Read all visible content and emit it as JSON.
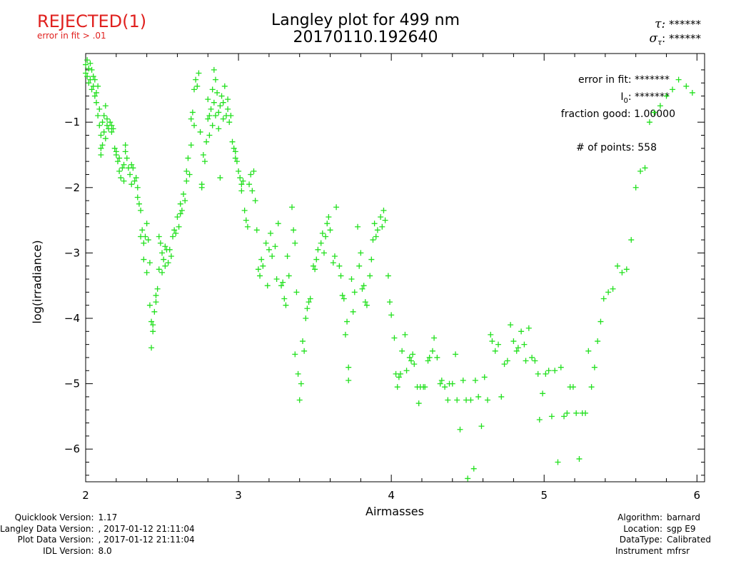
{
  "status": {
    "label": "REJECTED(1)",
    "reason": "error in fit > .01",
    "color": "#e0201e"
  },
  "header": {
    "title_line1": "Langley plot for 499 nm",
    "title_line2": "20170110.192640",
    "tau_label": "τ:",
    "tau_value": "******",
    "sigma_label": "σ",
    "sigma_sub": "τ",
    "sigma_colon": ":",
    "sigma_value": "******"
  },
  "stats": {
    "error_label": "error in fit:",
    "error_value": "*******",
    "i0_label": "I",
    "i0_sub": "0",
    "i0_colon": ":",
    "i0_value": "*******",
    "fraction_label": "fraction good:",
    "fraction_value": "1.00000",
    "points_label": "# of points:",
    "points_value": "558"
  },
  "footer_left": [
    {
      "label": "Quicklook Version:",
      "value": "1.17"
    },
    {
      "label": "Langley Data Version:",
      "value": ", 2017-01-12 21:11:04"
    },
    {
      "label": "Plot Data Version:",
      "value": ", 2017-01-12 21:11:04"
    },
    {
      "label": "IDL Version:",
      "value": "8.0"
    }
  ],
  "footer_right": [
    {
      "label": "Algorithm:",
      "value": "barnard"
    },
    {
      "label": "Location:",
      "value": "sgp E9"
    },
    {
      "label": "DataType:",
      "value": "Calibrated"
    },
    {
      "label": "Instrument",
      "value": "mfrsr"
    }
  ],
  "chart_data": {
    "type": "scatter",
    "xlabel": "Airmasses",
    "ylabel": "log(irradiance)",
    "xlim": [
      2.0,
      6.05
    ],
    "ylim": [
      -6.5,
      0.05
    ],
    "x_ticks": [
      2,
      3,
      4,
      5,
      6
    ],
    "y_ticks": [
      -1,
      -2,
      -3,
      -4,
      -5,
      -6
    ],
    "marker": "+",
    "marker_color": "#22e01e",
    "grid": false,
    "points": [
      [
        2.0,
        -0.12
      ],
      [
        2.0,
        -0.25
      ],
      [
        2.01,
        -0.05
      ],
      [
        2.01,
        -0.3
      ],
      [
        2.02,
        -0.18
      ],
      [
        2.02,
        -0.4
      ],
      [
        2.03,
        -0.1
      ],
      [
        2.03,
        -0.35
      ],
      [
        2.04,
        -0.2
      ],
      [
        2.04,
        -0.5
      ],
      [
        2.05,
        -0.3
      ],
      [
        2.05,
        -0.45
      ],
      [
        2.06,
        -0.6
      ],
      [
        2.06,
        -0.35
      ],
      [
        2.07,
        -0.55
      ],
      [
        2.07,
        -0.7
      ],
      [
        2.08,
        -0.45
      ],
      [
        2.08,
        -0.9
      ],
      [
        2.09,
        -0.8
      ],
      [
        2.09,
        -1.05
      ],
      [
        2.1,
        -1.2
      ],
      [
        2.1,
        -1.4
      ],
      [
        2.1,
        -1.5
      ],
      [
        2.11,
        -1.0
      ],
      [
        2.11,
        -1.35
      ],
      [
        2.12,
        -1.15
      ],
      [
        2.12,
        -0.9
      ],
      [
        2.13,
        -0.75
      ],
      [
        2.13,
        -1.25
      ],
      [
        2.14,
        -1.05
      ],
      [
        2.14,
        -0.95
      ],
      [
        2.15,
        -1.1
      ],
      [
        2.16,
        -1.0
      ],
      [
        2.17,
        -1.15
      ],
      [
        2.17,
        -1.05
      ],
      [
        2.18,
        -1.1
      ],
      [
        2.19,
        -1.4
      ],
      [
        2.2,
        -1.5
      ],
      [
        2.2,
        -1.45
      ],
      [
        2.21,
        -1.6
      ],
      [
        2.22,
        -1.75
      ],
      [
        2.22,
        -1.55
      ],
      [
        2.23,
        -1.85
      ],
      [
        2.24,
        -1.7
      ],
      [
        2.25,
        -1.9
      ],
      [
        2.25,
        -1.65
      ],
      [
        2.26,
        -1.45
      ],
      [
        2.26,
        -1.35
      ],
      [
        2.27,
        -1.55
      ],
      [
        2.28,
        -1.7
      ],
      [
        2.29,
        -1.8
      ],
      [
        2.3,
        -1.65
      ],
      [
        2.3,
        -1.95
      ],
      [
        2.31,
        -1.7
      ],
      [
        2.32,
        -1.9
      ],
      [
        2.33,
        -1.85
      ],
      [
        2.34,
        -2.0
      ],
      [
        2.34,
        -2.15
      ],
      [
        2.35,
        -2.25
      ],
      [
        2.36,
        -2.35
      ],
      [
        2.36,
        -2.75
      ],
      [
        2.37,
        -2.65
      ],
      [
        2.38,
        -2.85
      ],
      [
        2.38,
        -3.1
      ],
      [
        2.39,
        -2.75
      ],
      [
        2.4,
        -2.55
      ],
      [
        2.4,
        -3.3
      ],
      [
        2.41,
        -2.8
      ],
      [
        2.42,
        -3.15
      ],
      [
        2.42,
        -3.8
      ],
      [
        2.43,
        -4.05
      ],
      [
        2.43,
        -4.45
      ],
      [
        2.44,
        -4.2
      ],
      [
        2.44,
        -4.1
      ],
      [
        2.45,
        -3.9
      ],
      [
        2.46,
        -3.75
      ],
      [
        2.46,
        -3.65
      ],
      [
        2.47,
        -3.55
      ],
      [
        2.48,
        -3.25
      ],
      [
        2.48,
        -2.75
      ],
      [
        2.49,
        -2.85
      ],
      [
        2.5,
        -3.0
      ],
      [
        2.5,
        -3.3
      ],
      [
        2.51,
        -3.1
      ],
      [
        2.52,
        -2.9
      ],
      [
        2.52,
        -3.2
      ],
      [
        2.53,
        -2.95
      ],
      [
        2.54,
        -3.15
      ],
      [
        2.55,
        -2.95
      ],
      [
        2.56,
        -3.05
      ],
      [
        2.57,
        -2.75
      ],
      [
        2.58,
        -2.65
      ],
      [
        2.59,
        -2.7
      ],
      [
        2.6,
        -2.45
      ],
      [
        2.61,
        -2.6
      ],
      [
        2.62,
        -2.25
      ],
      [
        2.62,
        -2.4
      ],
      [
        2.63,
        -2.35
      ],
      [
        2.64,
        -2.1
      ],
      [
        2.65,
        -2.2
      ],
      [
        2.66,
        -1.75
      ],
      [
        2.66,
        -1.9
      ],
      [
        2.67,
        -1.55
      ],
      [
        2.68,
        -1.8
      ],
      [
        2.69,
        -1.35
      ],
      [
        2.69,
        -0.95
      ],
      [
        2.7,
        -0.85
      ],
      [
        2.71,
        -1.05
      ],
      [
        2.71,
        -0.5
      ],
      [
        2.72,
        -0.35
      ],
      [
        2.73,
        -0.45
      ],
      [
        2.74,
        -0.25
      ],
      [
        2.75,
        -1.15
      ],
      [
        2.76,
        -1.95
      ],
      [
        2.76,
        -2.0
      ],
      [
        2.77,
        -1.5
      ],
      [
        2.78,
        -1.6
      ],
      [
        2.79,
        -1.3
      ],
      [
        2.8,
        -0.95
      ],
      [
        2.8,
        -0.65
      ],
      [
        2.81,
        -0.9
      ],
      [
        2.81,
        -1.2
      ],
      [
        2.82,
        -0.8
      ],
      [
        2.83,
        -0.5
      ],
      [
        2.83,
        -1.05
      ],
      [
        2.84,
        -0.7
      ],
      [
        2.84,
        -0.2
      ],
      [
        2.85,
        -0.35
      ],
      [
        2.85,
        -0.9
      ],
      [
        2.86,
        -0.55
      ],
      [
        2.87,
        -1.1
      ],
      [
        2.87,
        -0.85
      ],
      [
        2.88,
        -0.75
      ],
      [
        2.88,
        -1.85
      ],
      [
        2.89,
        -0.6
      ],
      [
        2.9,
        -0.95
      ],
      [
        2.9,
        -0.7
      ],
      [
        2.91,
        -0.45
      ],
      [
        2.92,
        -0.9
      ],
      [
        2.93,
        -0.65
      ],
      [
        2.93,
        -0.8
      ],
      [
        2.94,
        -1.0
      ],
      [
        2.95,
        -0.9
      ],
      [
        2.96,
        -1.3
      ],
      [
        2.97,
        -1.4
      ],
      [
        2.98,
        -1.55
      ],
      [
        2.98,
        -1.45
      ],
      [
        2.99,
        -1.6
      ],
      [
        3.0,
        -1.75
      ],
      [
        3.01,
        -1.85
      ],
      [
        3.02,
        -1.95
      ],
      [
        3.02,
        -2.05
      ],
      [
        3.03,
        -1.9
      ],
      [
        3.04,
        -2.35
      ],
      [
        3.05,
        -2.5
      ],
      [
        3.06,
        -2.6
      ],
      [
        3.07,
        -1.95
      ],
      [
        3.08,
        -1.8
      ],
      [
        3.09,
        -2.05
      ],
      [
        3.1,
        -1.75
      ],
      [
        3.11,
        -2.2
      ],
      [
        3.12,
        -2.65
      ],
      [
        3.13,
        -3.25
      ],
      [
        3.14,
        -3.35
      ],
      [
        3.15,
        -3.1
      ],
      [
        3.16,
        -3.2
      ],
      [
        3.18,
        -2.85
      ],
      [
        3.19,
        -3.5
      ],
      [
        3.2,
        -2.95
      ],
      [
        3.21,
        -2.7
      ],
      [
        3.22,
        -3.05
      ],
      [
        3.24,
        -2.9
      ],
      [
        3.25,
        -3.4
      ],
      [
        3.26,
        -2.55
      ],
      [
        3.28,
        -3.5
      ],
      [
        3.29,
        -3.45
      ],
      [
        3.3,
        -3.7
      ],
      [
        3.31,
        -3.8
      ],
      [
        3.32,
        -3.05
      ],
      [
        3.33,
        -3.35
      ],
      [
        3.35,
        -2.3
      ],
      [
        3.36,
        -2.65
      ],
      [
        3.37,
        -2.85
      ],
      [
        3.37,
        -4.55
      ],
      [
        3.38,
        -3.6
      ],
      [
        3.39,
        -4.85
      ],
      [
        3.4,
        -5.25
      ],
      [
        3.41,
        -5.0
      ],
      [
        3.42,
        -4.35
      ],
      [
        3.43,
        -4.5
      ],
      [
        3.44,
        -4.0
      ],
      [
        3.45,
        -3.85
      ],
      [
        3.46,
        -3.75
      ],
      [
        3.47,
        -3.7
      ],
      [
        3.49,
        -3.2
      ],
      [
        3.5,
        -3.25
      ],
      [
        3.51,
        -3.1
      ],
      [
        3.52,
        -2.95
      ],
      [
        3.54,
        -2.85
      ],
      [
        3.55,
        -2.7
      ],
      [
        3.56,
        -3.0
      ],
      [
        3.57,
        -2.75
      ],
      [
        3.58,
        -2.55
      ],
      [
        3.59,
        -2.45
      ],
      [
        3.6,
        -2.65
      ],
      [
        3.62,
        -3.15
      ],
      [
        3.63,
        -3.05
      ],
      [
        3.64,
        -2.3
      ],
      [
        3.66,
        -3.2
      ],
      [
        3.67,
        -3.35
      ],
      [
        3.68,
        -3.65
      ],
      [
        3.69,
        -3.7
      ],
      [
        3.7,
        -4.25
      ],
      [
        3.71,
        -4.05
      ],
      [
        3.72,
        -4.75
      ],
      [
        3.72,
        -4.95
      ],
      [
        3.74,
        -3.4
      ],
      [
        3.75,
        -3.9
      ],
      [
        3.76,
        -3.6
      ],
      [
        3.78,
        -2.6
      ],
      [
        3.79,
        -3.2
      ],
      [
        3.8,
        -3.0
      ],
      [
        3.81,
        -3.55
      ],
      [
        3.82,
        -3.5
      ],
      [
        3.83,
        -3.75
      ],
      [
        3.84,
        -3.8
      ],
      [
        3.86,
        -3.35
      ],
      [
        3.87,
        -3.1
      ],
      [
        3.88,
        -2.8
      ],
      [
        3.89,
        -2.55
      ],
      [
        3.9,
        -2.75
      ],
      [
        3.91,
        -2.65
      ],
      [
        3.93,
        -2.45
      ],
      [
        3.94,
        -2.6
      ],
      [
        3.95,
        -2.35
      ],
      [
        3.96,
        -2.5
      ],
      [
        3.98,
        -3.35
      ],
      [
        3.99,
        -3.75
      ],
      [
        4.0,
        -3.95
      ],
      [
        4.02,
        -4.3
      ],
      [
        4.03,
        -4.85
      ],
      [
        4.04,
        -5.05
      ],
      [
        4.05,
        -4.9
      ],
      [
        4.06,
        -4.85
      ],
      [
        4.07,
        -4.5
      ],
      [
        4.09,
        -4.25
      ],
      [
        4.1,
        -4.8
      ],
      [
        4.12,
        -4.6
      ],
      [
        4.13,
        -4.65
      ],
      [
        4.14,
        -4.55
      ],
      [
        4.15,
        -4.7
      ],
      [
        4.17,
        -5.05
      ],
      [
        4.18,
        -5.3
      ],
      [
        4.19,
        -5.05
      ],
      [
        4.21,
        -5.05
      ],
      [
        4.22,
        -5.05
      ],
      [
        4.24,
        -4.65
      ],
      [
        4.25,
        -4.6
      ],
      [
        4.27,
        -4.5
      ],
      [
        4.28,
        -4.3
      ],
      [
        4.3,
        -4.6
      ],
      [
        4.32,
        -5.0
      ],
      [
        4.33,
        -4.95
      ],
      [
        4.35,
        -5.05
      ],
      [
        4.37,
        -5.25
      ],
      [
        4.38,
        -5.0
      ],
      [
        4.4,
        -5.0
      ],
      [
        4.42,
        -4.55
      ],
      [
        4.43,
        -5.25
      ],
      [
        4.45,
        -5.7
      ],
      [
        4.47,
        -4.95
      ],
      [
        4.49,
        -5.25
      ],
      [
        4.5,
        -6.45
      ],
      [
        4.52,
        -5.25
      ],
      [
        4.54,
        -6.3
      ],
      [
        4.55,
        -4.95
      ],
      [
        4.57,
        -5.2
      ],
      [
        4.59,
        -5.65
      ],
      [
        4.61,
        -4.9
      ],
      [
        4.63,
        -5.25
      ],
      [
        4.65,
        -4.25
      ],
      [
        4.66,
        -4.35
      ],
      [
        4.68,
        -4.5
      ],
      [
        4.7,
        -4.4
      ],
      [
        4.72,
        -5.2
      ],
      [
        4.74,
        -4.7
      ],
      [
        4.76,
        -4.65
      ],
      [
        4.78,
        -4.1
      ],
      [
        4.8,
        -4.35
      ],
      [
        4.82,
        -4.5
      ],
      [
        4.83,
        -4.45
      ],
      [
        4.85,
        -4.2
      ],
      [
        4.87,
        -4.4
      ],
      [
        4.88,
        -4.65
      ],
      [
        4.9,
        -4.15
      ],
      [
        4.92,
        -4.6
      ],
      [
        4.94,
        -4.65
      ],
      [
        4.96,
        -4.85
      ],
      [
        4.97,
        -5.55
      ],
      [
        4.99,
        -5.15
      ],
      [
        5.01,
        -4.85
      ],
      [
        5.03,
        -4.8
      ],
      [
        5.05,
        -5.5
      ],
      [
        5.07,
        -4.8
      ],
      [
        5.09,
        -6.2
      ],
      [
        5.11,
        -4.75
      ],
      [
        5.13,
        -5.5
      ],
      [
        5.15,
        -5.45
      ],
      [
        5.17,
        -5.05
      ],
      [
        5.19,
        -5.05
      ],
      [
        5.21,
        -5.45
      ],
      [
        5.23,
        -6.15
      ],
      [
        5.25,
        -5.45
      ],
      [
        5.27,
        -5.45
      ],
      [
        5.29,
        -4.5
      ],
      [
        5.31,
        -5.05
      ],
      [
        5.33,
        -4.75
      ],
      [
        5.35,
        -4.35
      ],
      [
        5.37,
        -4.05
      ],
      [
        5.39,
        -3.7
      ],
      [
        5.42,
        -3.6
      ],
      [
        5.45,
        -3.55
      ],
      [
        5.48,
        -3.2
      ],
      [
        5.51,
        -3.3
      ],
      [
        5.54,
        -3.25
      ],
      [
        5.57,
        -2.8
      ],
      [
        5.6,
        -2.0
      ],
      [
        5.63,
        -1.75
      ],
      [
        5.66,
        -1.7
      ],
      [
        5.69,
        -1.0
      ],
      [
        5.72,
        -0.85
      ],
      [
        5.76,
        -0.75
      ],
      [
        5.8,
        -0.6
      ],
      [
        5.84,
        -0.5
      ],
      [
        5.88,
        -0.35
      ],
      [
        5.93,
        -0.45
      ],
      [
        5.97,
        -0.55
      ]
    ]
  }
}
